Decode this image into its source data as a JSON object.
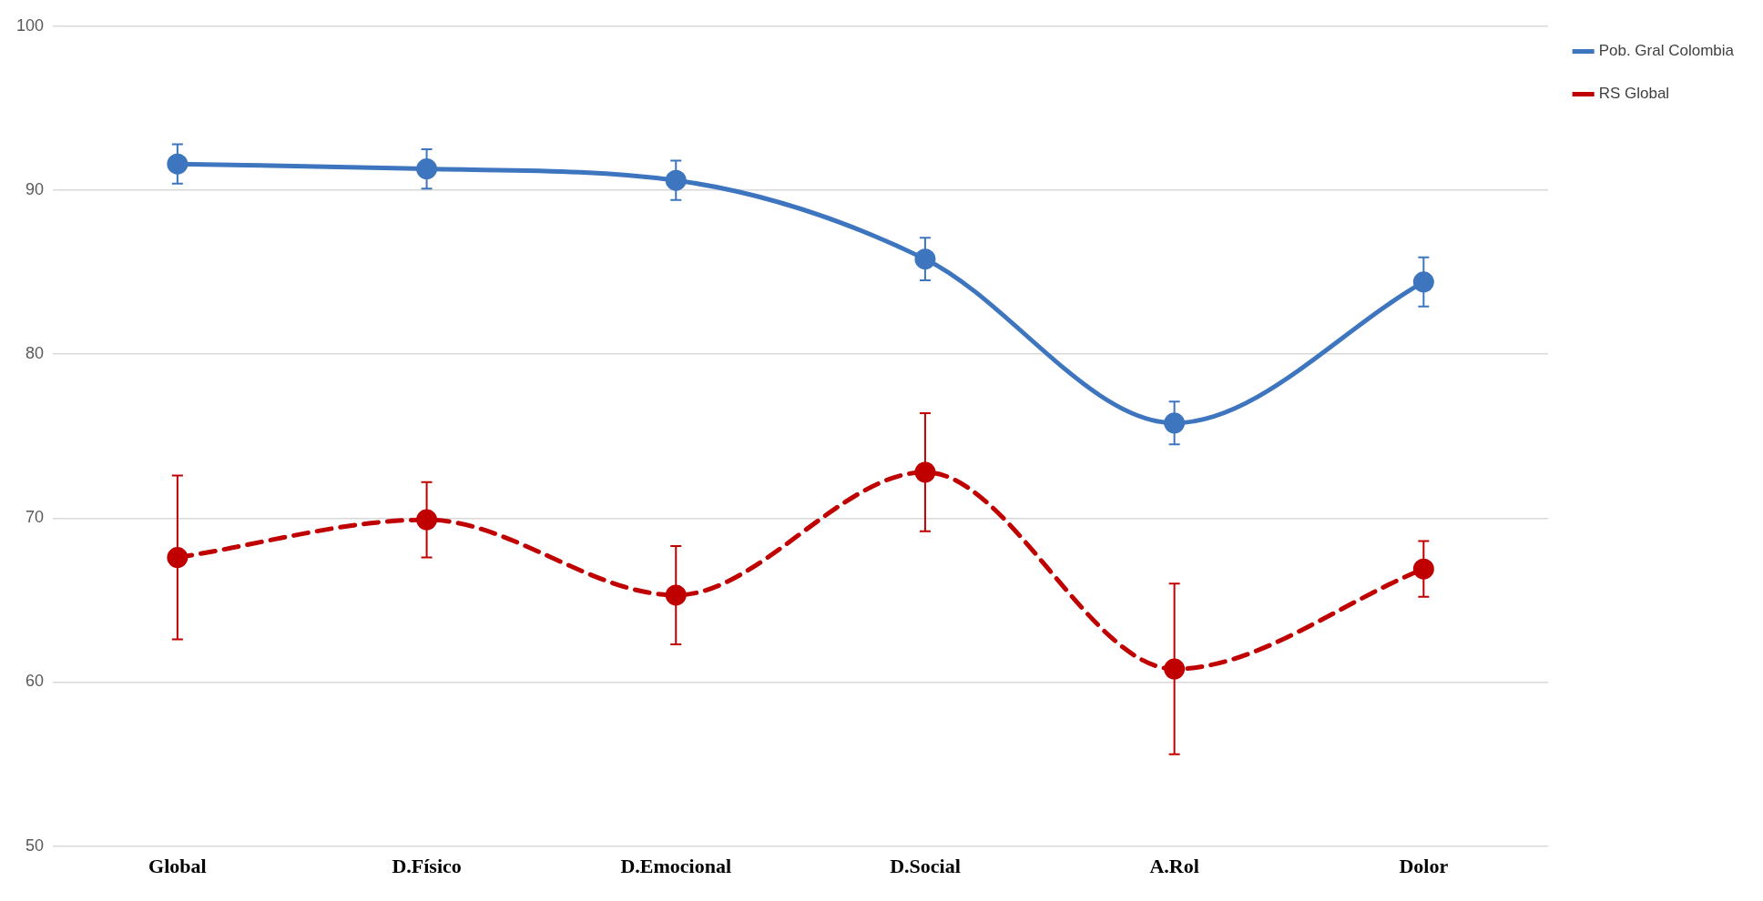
{
  "chart_data": {
    "type": "line",
    "categories": [
      "Global",
      "D.Físico",
      "D.Emocional",
      "D.Social",
      "A.Rol",
      "Dolor"
    ],
    "series": [
      {
        "name": "Pob. Gral Colombia",
        "color": "#3e75bf",
        "values": [
          91.6,
          91.3,
          90.6,
          85.8,
          75.8,
          84.4
        ],
        "errors": [
          1.2,
          1.2,
          1.2,
          1.3,
          1.3,
          1.5
        ],
        "line_style": "solid"
      },
      {
        "name": "RS Global",
        "color": "#c00000",
        "values": [
          67.6,
          69.9,
          65.3,
          72.8,
          60.8,
          66.9
        ],
        "errors": [
          5,
          2.3,
          3,
          3.6,
          5.2,
          1.7
        ],
        "line_style": "dashed"
      }
    ],
    "ylim": [
      50,
      100
    ],
    "yticks": [
      50,
      60,
      70,
      80,
      90,
      100
    ],
    "grid": "y",
    "legend": "top right",
    "marker": "circle"
  }
}
